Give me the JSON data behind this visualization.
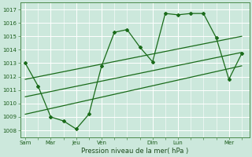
{
  "xlabel": "Pression niveau de la mer( hPa )",
  "bg_color": "#cce8dc",
  "grid_color": "#ffffff",
  "line_color": "#1a6b1a",
  "ylim": [
    1007.5,
    1017.5
  ],
  "yticks": [
    1008,
    1009,
    1010,
    1011,
    1012,
    1013,
    1014,
    1015,
    1016,
    1017
  ],
  "x_day_labels": [
    "Sam",
    "Mar",
    "Jeu",
    "Ven",
    "Dim",
    "Lun",
    "Mer"
  ],
  "x_day_positions": [
    0,
    1,
    2,
    3,
    5,
    6,
    8
  ],
  "xlim": [
    -0.2,
    8.8
  ],
  "series1_x": [
    0,
    0.5,
    1,
    1.5,
    2,
    2.5,
    3,
    3.5,
    4,
    4.5,
    5,
    5.5,
    6,
    6.5,
    7,
    7.5,
    8,
    8.5
  ],
  "series1_y": [
    1013.0,
    1011.3,
    1009.0,
    1008.7,
    1008.1,
    1009.2,
    1012.8,
    1015.3,
    1015.5,
    1014.2,
    1013.1,
    1016.7,
    1016.6,
    1016.7,
    1016.7,
    1014.9,
    1011.8,
    1013.7
  ],
  "trend1_x": [
    0,
    8.5
  ],
  "trend1_y": [
    1009.2,
    1012.8
  ],
  "trend2_x": [
    0,
    8.5
  ],
  "trend2_y": [
    1010.5,
    1013.8
  ],
  "trend3_x": [
    0,
    8.5
  ],
  "trend3_y": [
    1011.8,
    1015.0
  ]
}
